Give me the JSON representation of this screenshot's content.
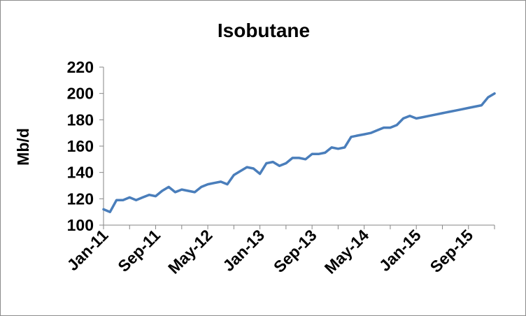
{
  "chart_data": {
    "type": "line",
    "title": "Isobutane",
    "xlabel": "",
    "ylabel": "Mb/d",
    "ylim": [
      100,
      220
    ],
    "yticks": [
      100,
      120,
      140,
      160,
      180,
      200,
      220
    ],
    "grid": false,
    "legend": "none",
    "x_tick_labels": [
      "Jan-11",
      "Sep-11",
      "May-12",
      "Jan-13",
      "Sep-13",
      "May-14",
      "Jan-15",
      "Sep-15"
    ],
    "x": [
      "2011-01",
      "2011-02",
      "2011-03",
      "2011-04",
      "2011-05",
      "2011-06",
      "2011-07",
      "2011-08",
      "2011-09",
      "2011-10",
      "2011-11",
      "2011-12",
      "2012-01",
      "2012-02",
      "2012-03",
      "2012-04",
      "2012-05",
      "2012-06",
      "2012-07",
      "2012-08",
      "2012-09",
      "2012-10",
      "2012-11",
      "2012-12",
      "2013-01",
      "2013-02",
      "2013-03",
      "2013-04",
      "2013-05",
      "2013-06",
      "2013-07",
      "2013-08",
      "2013-09",
      "2013-10",
      "2013-11",
      "2013-12",
      "2014-01",
      "2014-02",
      "2014-03",
      "2014-04",
      "2014-05",
      "2014-06",
      "2014-07",
      "2014-08",
      "2014-09",
      "2014-10",
      "2014-11",
      "2014-12",
      "2015-01",
      "2015-02",
      "2015-03",
      "2015-04",
      "2015-05",
      "2015-06",
      "2015-07",
      "2015-08",
      "2015-09",
      "2015-10",
      "2015-11",
      "2015-12",
      "2016-01"
    ],
    "series": [
      {
        "color": "#4a7ebb",
        "values": [
          112,
          110,
          119,
          119,
          121,
          119,
          121,
          123,
          122,
          126,
          129,
          125,
          127,
          126,
          125,
          129,
          131,
          132,
          133,
          131,
          138,
          141,
          144,
          143,
          139,
          147,
          148,
          145,
          147,
          151,
          151,
          150,
          154,
          154,
          155,
          159,
          158,
          159,
          167,
          168,
          169,
          170,
          172,
          174,
          174,
          176,
          181,
          183,
          181,
          182,
          183,
          184,
          185,
          186,
          187,
          188,
          189,
          190,
          191,
          197,
          200
        ]
      }
    ]
  }
}
